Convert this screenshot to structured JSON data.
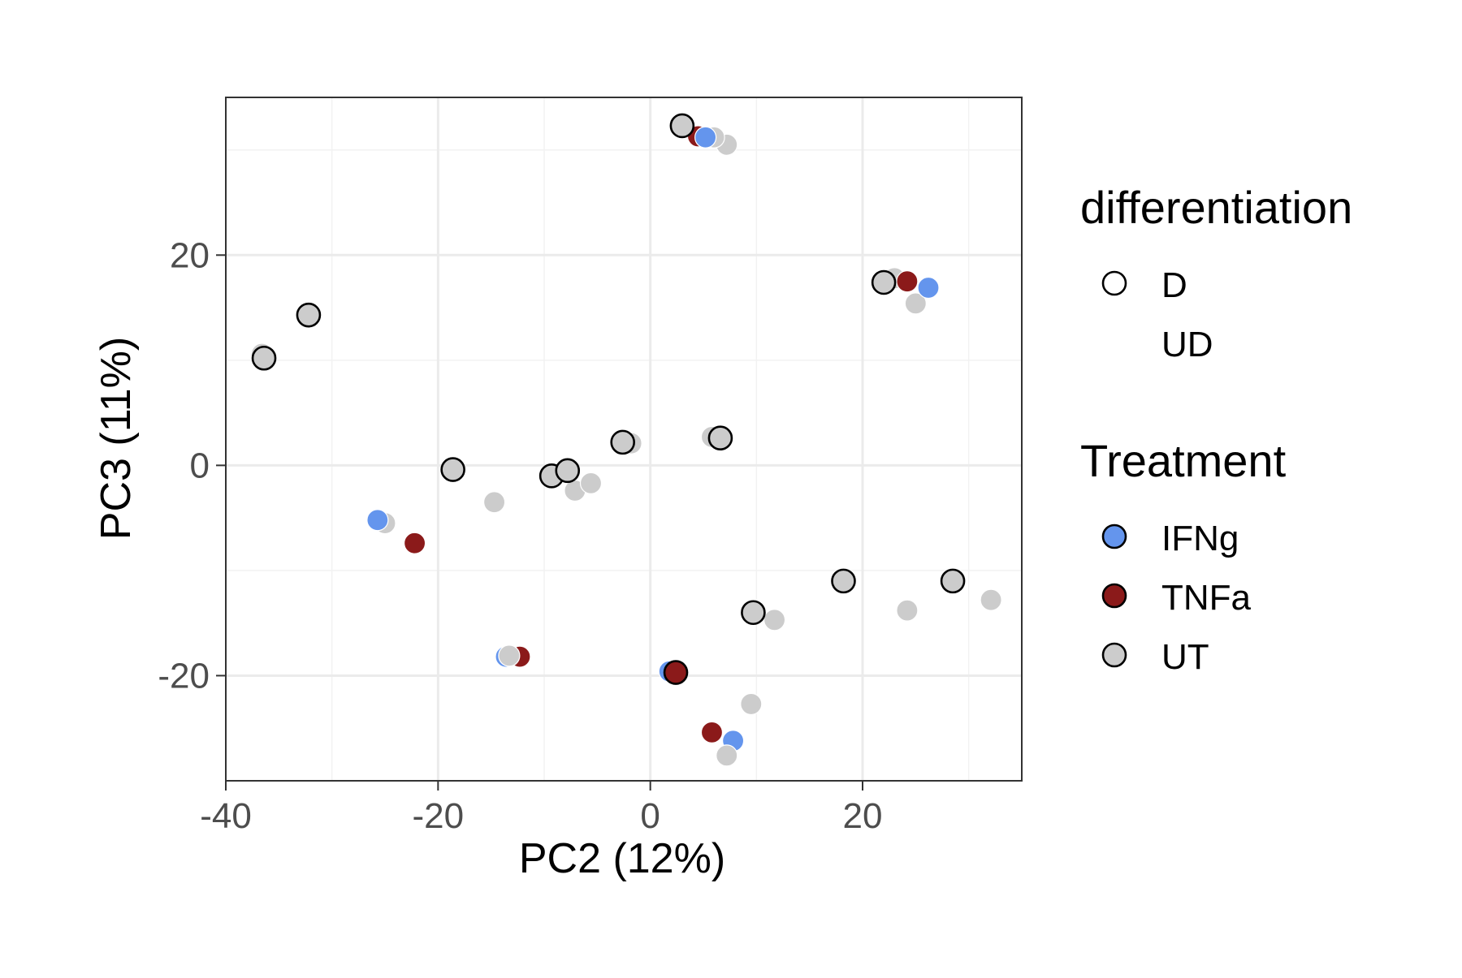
{
  "chart_data": {
    "type": "scatter",
    "xlabel": "PC2 (12%)",
    "ylabel": "PC3 (11%)",
    "xlim": [
      -40,
      35
    ],
    "ylim": [
      -30,
      35
    ],
    "x_ticks": [
      -40,
      -20,
      0,
      20
    ],
    "y_ticks": [
      -20,
      0,
      20
    ],
    "x_tick_labels": [
      "-40",
      "-20",
      "0",
      "20"
    ],
    "y_tick_labels": [
      "-20",
      "0",
      "20"
    ],
    "grid": true,
    "legend_position": "right",
    "legends": [
      {
        "title": "differentiation",
        "entries": [
          {
            "label": "D",
            "style": "outlined"
          },
          {
            "label": "UD",
            "style": "no-outline"
          }
        ]
      },
      {
        "title": "Treatment",
        "entries": [
          {
            "label": "IFNg",
            "color": "#6495ED"
          },
          {
            "label": "TNFa",
            "color": "#8B1A1A"
          },
          {
            "label": "UT",
            "color": "#CCCCCC"
          }
        ]
      }
    ],
    "colors": {
      "IFNg": "#6495ED",
      "TNFa": "#8B1A1A",
      "UT": "#CCCCCC"
    },
    "points": [
      {
        "x": 7.2,
        "y": 30.5,
        "treatment": "UT",
        "differentiation": "UD"
      },
      {
        "x": 6.0,
        "y": 31.2,
        "treatment": "UT",
        "differentiation": "UD"
      },
      {
        "x": 4.5,
        "y": 31.3,
        "treatment": "TNFa",
        "differentiation": "UD"
      },
      {
        "x": 3.0,
        "y": 32.3,
        "treatment": "UT",
        "differentiation": "D"
      },
      {
        "x": 5.2,
        "y": 31.2,
        "treatment": "IFNg",
        "differentiation": "UD"
      },
      {
        "x": 23.0,
        "y": 17.8,
        "treatment": "UT",
        "differentiation": "UD"
      },
      {
        "x": 24.2,
        "y": 17.5,
        "treatment": "TNFa",
        "differentiation": "UD"
      },
      {
        "x": 25.0,
        "y": 15.4,
        "treatment": "UT",
        "differentiation": "UD"
      },
      {
        "x": 22.0,
        "y": 17.4,
        "treatment": "UT",
        "differentiation": "D"
      },
      {
        "x": 26.2,
        "y": 16.9,
        "treatment": "IFNg",
        "differentiation": "UD"
      },
      {
        "x": -32.2,
        "y": 14.3,
        "treatment": "UT",
        "differentiation": "D"
      },
      {
        "x": -36.6,
        "y": 10.6,
        "treatment": "UT",
        "differentiation": "UD"
      },
      {
        "x": -36.4,
        "y": 10.2,
        "treatment": "UT",
        "differentiation": "D"
      },
      {
        "x": -1.8,
        "y": 2.1,
        "treatment": "UT",
        "differentiation": "UD"
      },
      {
        "x": -2.6,
        "y": 2.2,
        "treatment": "UT",
        "differentiation": "D"
      },
      {
        "x": 6.6,
        "y": 2.6,
        "treatment": "UT",
        "differentiation": "D"
      },
      {
        "x": 5.8,
        "y": 2.7,
        "treatment": "UT",
        "differentiation": "UD"
      },
      {
        "x": -18.6,
        "y": -0.4,
        "treatment": "UT",
        "differentiation": "D"
      },
      {
        "x": -14.7,
        "y": -3.5,
        "treatment": "UT",
        "differentiation": "UD"
      },
      {
        "x": -7.1,
        "y": -2.4,
        "treatment": "UT",
        "differentiation": "UD"
      },
      {
        "x": -5.6,
        "y": -1.7,
        "treatment": "UT",
        "differentiation": "UD"
      },
      {
        "x": -9.3,
        "y": -1.0,
        "treatment": "UT",
        "differentiation": "D"
      },
      {
        "x": -7.8,
        "y": -0.5,
        "treatment": "UT",
        "differentiation": "D"
      },
      {
        "x": -25.0,
        "y": -5.5,
        "treatment": "UT",
        "differentiation": "UD"
      },
      {
        "x": -25.7,
        "y": -5.2,
        "treatment": "IFNg",
        "differentiation": "UD"
      },
      {
        "x": -22.2,
        "y": -7.4,
        "treatment": "TNFa",
        "differentiation": "UD"
      },
      {
        "x": 11.7,
        "y": -14.7,
        "treatment": "UT",
        "differentiation": "UD"
      },
      {
        "x": 9.7,
        "y": -14.0,
        "treatment": "UT",
        "differentiation": "D"
      },
      {
        "x": 18.2,
        "y": -11.0,
        "treatment": "UT",
        "differentiation": "D"
      },
      {
        "x": 24.2,
        "y": -13.8,
        "treatment": "UT",
        "differentiation": "UD"
      },
      {
        "x": 32.1,
        "y": -12.8,
        "treatment": "UT",
        "differentiation": "UD"
      },
      {
        "x": 28.5,
        "y": -11.0,
        "treatment": "UT",
        "differentiation": "D"
      },
      {
        "x": -12.3,
        "y": -18.2,
        "treatment": "TNFa",
        "differentiation": "UD"
      },
      {
        "x": -13.6,
        "y": -18.2,
        "treatment": "IFNg",
        "differentiation": "UD"
      },
      {
        "x": -13.3,
        "y": -18.1,
        "treatment": "UT",
        "differentiation": "UD"
      },
      {
        "x": 1.8,
        "y": -19.6,
        "treatment": "IFNg",
        "differentiation": "UD"
      },
      {
        "x": 2.4,
        "y": -19.7,
        "treatment": "TNFa",
        "differentiation": "D"
      },
      {
        "x": 9.5,
        "y": -22.7,
        "treatment": "UT",
        "differentiation": "UD"
      },
      {
        "x": 5.8,
        "y": -25.4,
        "treatment": "TNFa",
        "differentiation": "UD"
      },
      {
        "x": 7.8,
        "y": -26.2,
        "treatment": "IFNg",
        "differentiation": "UD"
      },
      {
        "x": 7.2,
        "y": -27.6,
        "treatment": "UT",
        "differentiation": "UD"
      }
    ]
  }
}
